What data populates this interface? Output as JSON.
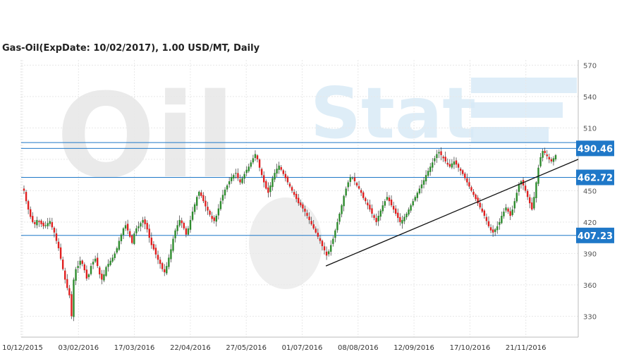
{
  "chart_data": {
    "type": "candlestick",
    "title": "Gas-Oil(ExpDate: 10/02/2017), 1.00 USD/MT, Daily",
    "watermark": "OilStat",
    "ylim": [
      310,
      575
    ],
    "y_ticks": [
      330,
      360,
      390,
      420,
      450,
      480,
      510,
      540,
      570
    ],
    "y_tick_labels": [
      "330",
      "360",
      "390",
      "420",
      "450",
      "",
      "510",
      "540",
      "570"
    ],
    "x_tick_labels": [
      "10/12/2015",
      "03/02/2016",
      "17/03/2016",
      "22/04/2016",
      "27/05/2016",
      "01/07/2016",
      "08/08/2016",
      "12/09/2016",
      "17/10/2016",
      "21/11/2016"
    ],
    "grid": true,
    "levels": [
      {
        "value": 490.46,
        "label": "490.46",
        "color": "#1f78c8"
      },
      {
        "value": 462.72,
        "label": "462.72",
        "color": "#1f78c8"
      },
      {
        "value": 407.23,
        "label": "407.23",
        "color": "#1f78c8"
      }
    ],
    "extra_level": 496.0,
    "trendline": {
      "start": [
        0.547,
        378
      ],
      "end": [
        1.0,
        480
      ]
    },
    "up_color": "#2e8b2e",
    "down_color": "#e02020",
    "close": [
      450,
      440,
      432,
      425,
      420,
      418,
      422,
      420,
      418,
      416,
      417,
      419,
      421,
      415,
      410,
      402,
      395,
      385,
      375,
      365,
      357,
      350,
      330,
      365,
      375,
      378,
      383,
      380,
      374,
      366,
      370,
      378,
      382,
      385,
      378,
      370,
      365,
      370,
      377,
      380,
      383,
      386,
      390,
      395,
      402,
      408,
      414,
      417,
      412,
      406,
      400,
      409,
      414,
      416,
      419,
      422,
      418,
      413,
      405,
      398,
      394,
      389,
      384,
      380,
      375,
      372,
      378,
      386,
      394,
      404,
      412,
      417,
      422,
      419,
      414,
      408,
      414,
      422,
      430,
      437,
      444,
      449,
      445,
      440,
      435,
      431,
      427,
      423,
      421,
      426,
      433,
      440,
      446,
      451,
      455,
      459,
      463,
      465,
      467,
      462,
      458,
      462,
      466,
      470,
      473,
      477,
      481,
      485,
      480,
      472,
      465,
      458,
      452,
      448,
      455,
      462,
      467,
      471,
      474,
      470,
      466,
      462,
      458,
      454,
      450,
      446,
      442,
      438,
      436,
      433,
      430,
      426,
      422,
      418,
      414,
      410,
      406,
      402,
      397,
      393,
      388,
      392,
      398,
      404,
      412,
      420,
      428,
      436,
      445,
      452,
      458,
      463,
      462,
      459,
      455,
      452,
      448,
      443,
      440,
      436,
      432,
      428,
      424,
      420,
      426,
      431,
      436,
      440,
      444,
      440,
      436,
      432,
      428,
      424,
      420,
      422,
      425,
      428,
      432,
      436,
      440,
      444,
      448,
      452,
      456,
      460,
      465,
      469,
      473,
      477,
      481,
      485,
      487,
      484,
      481,
      478,
      475,
      473,
      476,
      478,
      475,
      472,
      469,
      466,
      462,
      458,
      454,
      450,
      446,
      442,
      438,
      434,
      430,
      426,
      421,
      416,
      412,
      410,
      413,
      416,
      420,
      426,
      430,
      434,
      430,
      426,
      432,
      440,
      448,
      456,
      459,
      455,
      450,
      444,
      438,
      432,
      444,
      458,
      472,
      482,
      488,
      486,
      483,
      480,
      478,
      481,
      484
    ]
  }
}
